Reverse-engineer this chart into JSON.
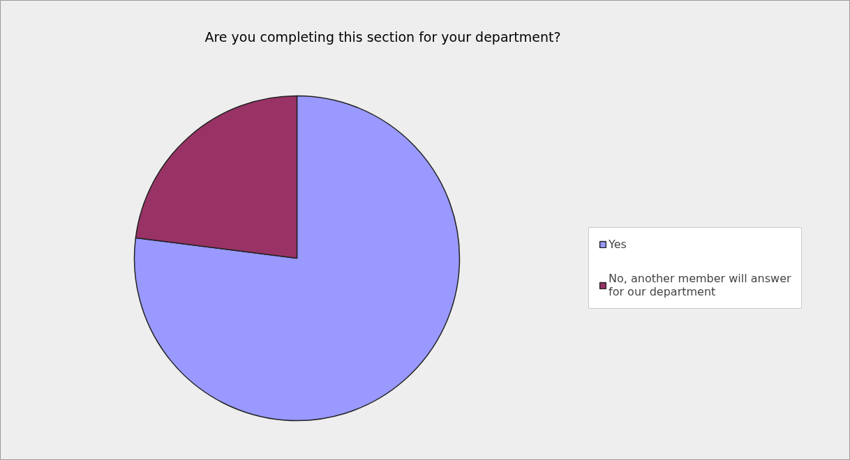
{
  "chart_data": {
    "type": "pie",
    "title": "Are you completing this section for your department?",
    "categories": [
      "Yes",
      "No, another member will answer for our department"
    ],
    "values": [
      77,
      23
    ],
    "colors": [
      "#9999ff",
      "#993366"
    ],
    "legend": "right"
  }
}
